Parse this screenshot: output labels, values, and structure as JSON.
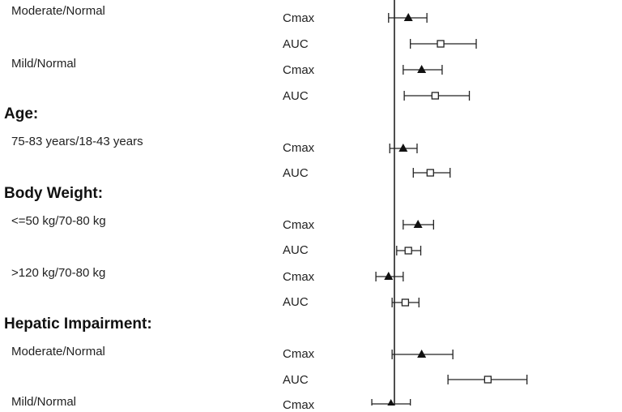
{
  "chart_data": {
    "type": "forest",
    "reference_line": 1.0,
    "markers": {
      "Cmax": "filled-triangle",
      "AUC": "open-square"
    },
    "groups": [
      {
        "section": "",
        "comparisons": [
          {
            "label": "Moderate/Normal",
            "rows": [
              {
                "metric": "Cmax",
                "est": 1.13,
                "lo": 0.95,
                "hi": 1.33
              },
              {
                "metric": "AUC",
                "est": 1.5,
                "lo": 1.15,
                "hi": 2.05
              }
            ]
          },
          {
            "label": "Mild/Normal",
            "rows": [
              {
                "metric": "Cmax",
                "est": 1.27,
                "lo": 1.08,
                "hi": 1.52
              },
              {
                "metric": "AUC",
                "est": 1.43,
                "lo": 1.09,
                "hi": 1.93
              }
            ]
          }
        ]
      },
      {
        "section": "Age:",
        "comparisons": [
          {
            "label": "75-83 years/18-43 years",
            "rows": [
              {
                "metric": "Cmax",
                "est": 1.08,
                "lo": 0.96,
                "hi": 1.22
              },
              {
                "metric": "AUC",
                "est": 1.37,
                "lo": 1.18,
                "hi": 1.63
              }
            ]
          }
        ]
      },
      {
        "section": "Body Weight:",
        "comparisons": [
          {
            "label": "<=50 kg/70-80 kg",
            "rows": [
              {
                "metric": "Cmax",
                "est": 1.23,
                "lo": 1.08,
                "hi": 1.41
              },
              {
                "metric": "AUC",
                "est": 1.13,
                "lo": 1.02,
                "hi": 1.26
              }
            ]
          },
          {
            "label": ">120 kg/70-80 kg",
            "rows": [
              {
                "metric": "Cmax",
                "est": 0.95,
                "lo": 0.85,
                "hi": 1.08
              },
              {
                "metric": "AUC",
                "est": 1.1,
                "lo": 0.98,
                "hi": 1.24
              }
            ]
          }
        ]
      },
      {
        "section": "Hepatic Impairment:",
        "comparisons": [
          {
            "label": "Moderate/Normal",
            "rows": [
              {
                "metric": "Cmax",
                "est": 1.27,
                "lo": 0.98,
                "hi": 1.67
              },
              {
                "metric": "AUC",
                "est": 2.27,
                "lo": 1.6,
                "hi": 3.2
              }
            ]
          },
          {
            "label": "Mild/Normal",
            "rows": [
              {
                "metric": "Cmax",
                "est": 0.97,
                "lo": 0.82,
                "hi": 1.15
              }
            ]
          }
        ]
      }
    ]
  }
}
